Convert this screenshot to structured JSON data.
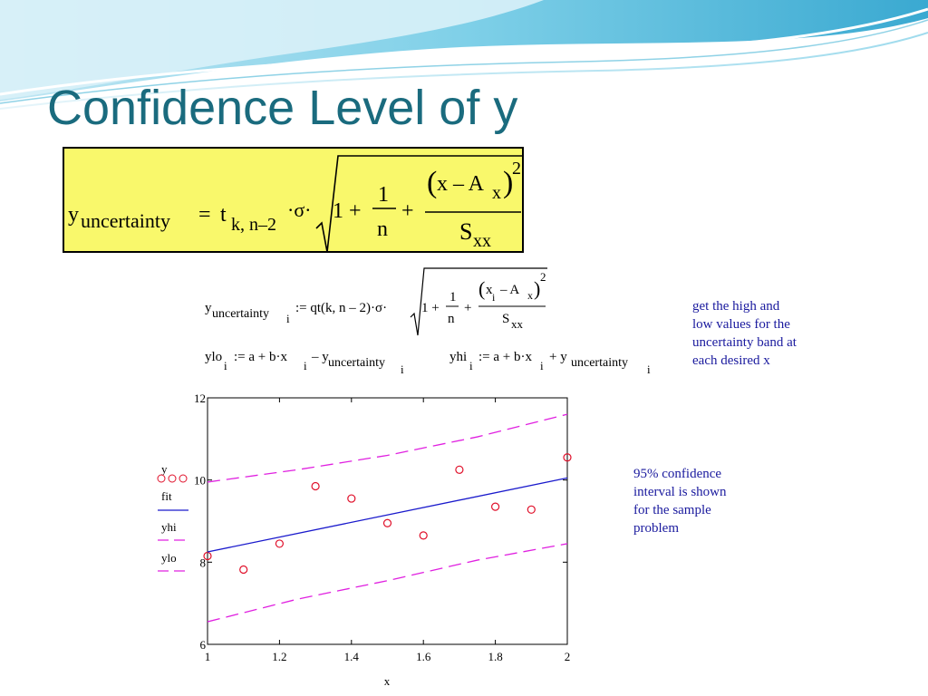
{
  "slide": {
    "title": "Confidence Level of y"
  },
  "formula_box": {
    "lhs_base": "y",
    "lhs_sub": "uncertainty",
    "equals": "=",
    "t": "t",
    "t_sub": "k, n–2",
    "sigma_dot": "·σ·",
    "one_plus": "1  +",
    "frac1_num": "1",
    "frac1_den": "n",
    "plus": "+",
    "frac2_num_x": "x – A",
    "frac2_num_sub": "x",
    "frac2_exp": "2",
    "frac2_den": "S",
    "frac2_den_sub": "xx"
  },
  "mathcad": {
    "line1_lhs": "y",
    "line1_lhs_sub": "uncertainty",
    "line1_idx": "i",
    "line1_rhs": ":= qt(k, n – 2)·σ·",
    "line1_one": "1 +",
    "line1_f1_num": "1",
    "line1_f1_den": "n",
    "line1_plus": "+",
    "line1_f2_num": "x",
    "line1_f2_num_i": "i",
    "line1_f2_num_rest": "– A",
    "line1_f2_num_sub": "x",
    "line1_f2_exp": "2",
    "line1_f2_den": "S",
    "line1_f2_den_sub": "xx",
    "ylo_lhs": "ylo",
    "ylo_idx": "i",
    "ylo_rhs": ":= a + b·x",
    "ylo_rhs_idx": "i",
    "ylo_rhs_tail": "– y",
    "ylo_rhs_sub": "uncertainty",
    "ylo_rhs_sub_idx": "i",
    "yhi_lhs": "yhi",
    "yhi_idx": "i",
    "yhi_rhs": ":= a + b·x",
    "yhi_rhs_idx": "i",
    "yhi_rhs_tail": "+ y",
    "yhi_rhs_sub": "uncertainty",
    "yhi_rhs_sub_idx": "i"
  },
  "notes": {
    "note1": [
      "get the high and",
      "low values for the",
      "uncertainty band at",
      "each desired x"
    ],
    "note2": [
      "95% confidence",
      "interval is shown",
      "for the sample",
      "problem"
    ]
  },
  "legend": {
    "items": [
      {
        "name": "y",
        "style": "circles"
      },
      {
        "name": "fit",
        "style": "solid"
      },
      {
        "name": "yhi",
        "style": "dashed"
      },
      {
        "name": "ylo",
        "style": "dashed"
      }
    ]
  },
  "colors": {
    "title": "#1a6b7e",
    "formula_bg": "#f9f86b",
    "note_text": "#1a1a9e",
    "points": "#e0102a",
    "fit": "#1a1acc",
    "band": "#e020e0"
  },
  "chart_data": {
    "type": "scatter",
    "xlabel": "x",
    "ylabel": "",
    "xlim": [
      1,
      2
    ],
    "ylim": [
      6,
      12
    ],
    "x_ticks": [
      "1",
      "1.2",
      "1.4",
      "1.6",
      "1.8",
      "2"
    ],
    "y_ticks": [
      "6",
      "8",
      "10",
      "12"
    ],
    "series": [
      {
        "name": "y",
        "kind": "points",
        "x": [
          1.0,
          1.1,
          1.2,
          1.3,
          1.4,
          1.5,
          1.6,
          1.7,
          1.8,
          1.9,
          2.0
        ],
        "y": [
          8.15,
          7.82,
          8.45,
          9.85,
          9.55,
          8.95,
          8.65,
          10.25,
          9.35,
          9.28,
          10.55
        ]
      },
      {
        "name": "fit",
        "kind": "solid",
        "x": [
          1.0,
          2.0
        ],
        "y": [
          8.25,
          10.05
        ]
      },
      {
        "name": "yhi",
        "kind": "dashed",
        "x": [
          1.0,
          1.25,
          1.5,
          1.75,
          2.0
        ],
        "y": [
          9.95,
          10.25,
          10.6,
          11.05,
          11.6
        ]
      },
      {
        "name": "ylo",
        "kind": "dashed",
        "x": [
          1.0,
          1.25,
          1.5,
          1.75,
          2.0
        ],
        "y": [
          6.55,
          7.1,
          7.55,
          8.05,
          8.45
        ]
      }
    ]
  }
}
